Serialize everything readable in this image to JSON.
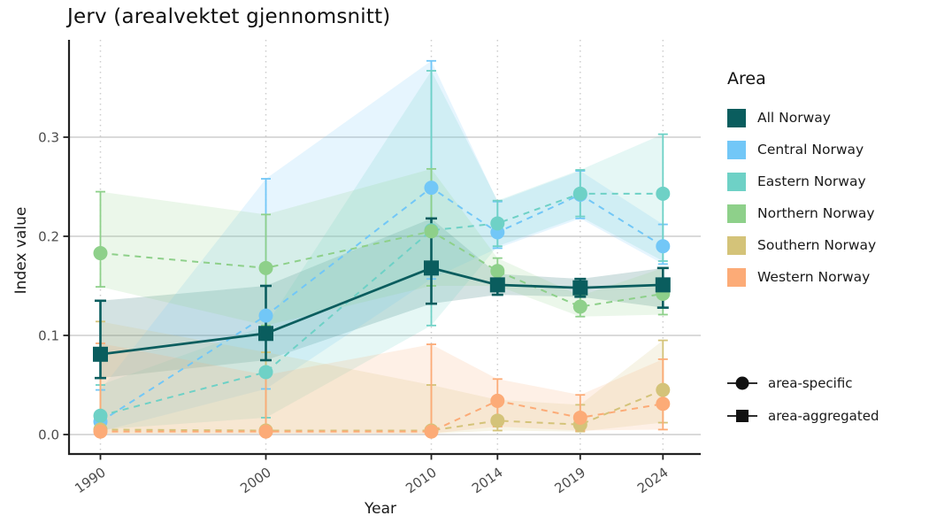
{
  "colors": {
    "background": "#ffffff",
    "grid": "#cdcdcd",
    "axis_line": "#222222",
    "axis_text": "#4d4d4d",
    "text": "#1a1a1a",
    "legend_glyph": "#111111"
  },
  "legend": {
    "area_title": "Area",
    "shape_items": [
      {
        "label": "area-specific",
        "marker": "circle"
      },
      {
        "label": "area-aggregated",
        "marker": "square"
      }
    ]
  },
  "chart_data": {
    "type": "line",
    "title": "Jerv (arealvektet gjennomsnitt)",
    "xlabel": "Year",
    "ylabel": "Index value",
    "x": [
      1990,
      2000,
      2010,
      2014,
      2019,
      2024
    ],
    "x_tick_labels": [
      "1990",
      "2000",
      "2010",
      "2014",
      "2019",
      "2024"
    ],
    "y_ticks": {
      "values": [
        0.0,
        0.1,
        0.2,
        0.3
      ],
      "labels": [
        "0.0",
        "0.1",
        "0.2",
        "0.3"
      ]
    },
    "xlim": [
      1988.1,
      2026.4
    ],
    "ylim": [
      -0.02,
      0.398
    ],
    "grid": {
      "horizontal": "solid",
      "vertical": "dotted"
    },
    "legend_position": "right",
    "series": [
      {
        "name": "All Norway",
        "color": "#0a5d5e",
        "marker": "square",
        "line": "solid",
        "aggregated": true,
        "values": [
          0.081,
          0.102,
          0.168,
          0.151,
          0.148,
          0.151
        ],
        "ci_low": [
          0.057,
          0.075,
          0.132,
          0.141,
          0.139,
          0.128
        ],
        "ci_high": [
          0.135,
          0.15,
          0.218,
          0.162,
          0.157,
          0.168
        ]
      },
      {
        "name": "Central Norway",
        "color": "#72c7f7",
        "marker": "circle",
        "line": "dashed",
        "aggregated": false,
        "values": [
          0.013,
          0.12,
          0.249,
          0.204,
          0.242,
          0.19
        ],
        "ci_low": [
          0.003,
          0.046,
          0.157,
          0.188,
          0.218,
          0.172
        ],
        "ci_high": [
          0.045,
          0.258,
          0.377,
          0.235,
          0.266,
          0.212
        ]
      },
      {
        "name": "Eastern Norway",
        "color": "#6ed1c6",
        "marker": "circle",
        "line": "dashed",
        "aggregated": false,
        "values": [
          0.019,
          0.063,
          0.206,
          0.213,
          0.243,
          0.243
        ],
        "ci_low": [
          0.005,
          0.017,
          0.11,
          0.19,
          0.22,
          0.175
        ],
        "ci_high": [
          0.05,
          0.11,
          0.367,
          0.236,
          0.267,
          0.303
        ]
      },
      {
        "name": "Northern Norway",
        "color": "#8ed08a",
        "marker": "circle",
        "line": "dashed",
        "aggregated": false,
        "values": [
          0.183,
          0.168,
          0.205,
          0.165,
          0.129,
          0.142
        ],
        "ci_low": [
          0.149,
          0.11,
          0.15,
          0.15,
          0.119,
          0.121
        ],
        "ci_high": [
          0.245,
          0.222,
          0.268,
          0.178,
          0.14,
          0.168
        ]
      },
      {
        "name": "Southern Norway",
        "color": "#d4c379",
        "marker": "circle",
        "line": "dashed",
        "aggregated": false,
        "values": [
          0.005,
          0.004,
          0.004,
          0.014,
          0.01,
          0.045
        ],
        "ci_low": [
          0.001,
          0.001,
          0.001,
          0.004,
          0.003,
          0.012
        ],
        "ci_high": [
          0.114,
          0.083,
          0.05,
          0.035,
          0.03,
          0.095
        ]
      },
      {
        "name": "Western Norway",
        "color": "#fcab77",
        "marker": "circle",
        "line": "dashed",
        "aggregated": false,
        "values": [
          0.003,
          0.003,
          0.003,
          0.034,
          0.017,
          0.031
        ],
        "ci_low": [
          0.001,
          0.001,
          0.001,
          0.008,
          0.004,
          0.005
        ],
        "ci_high": [
          0.092,
          0.06,
          0.091,
          0.056,
          0.04,
          0.076
        ]
      }
    ]
  }
}
